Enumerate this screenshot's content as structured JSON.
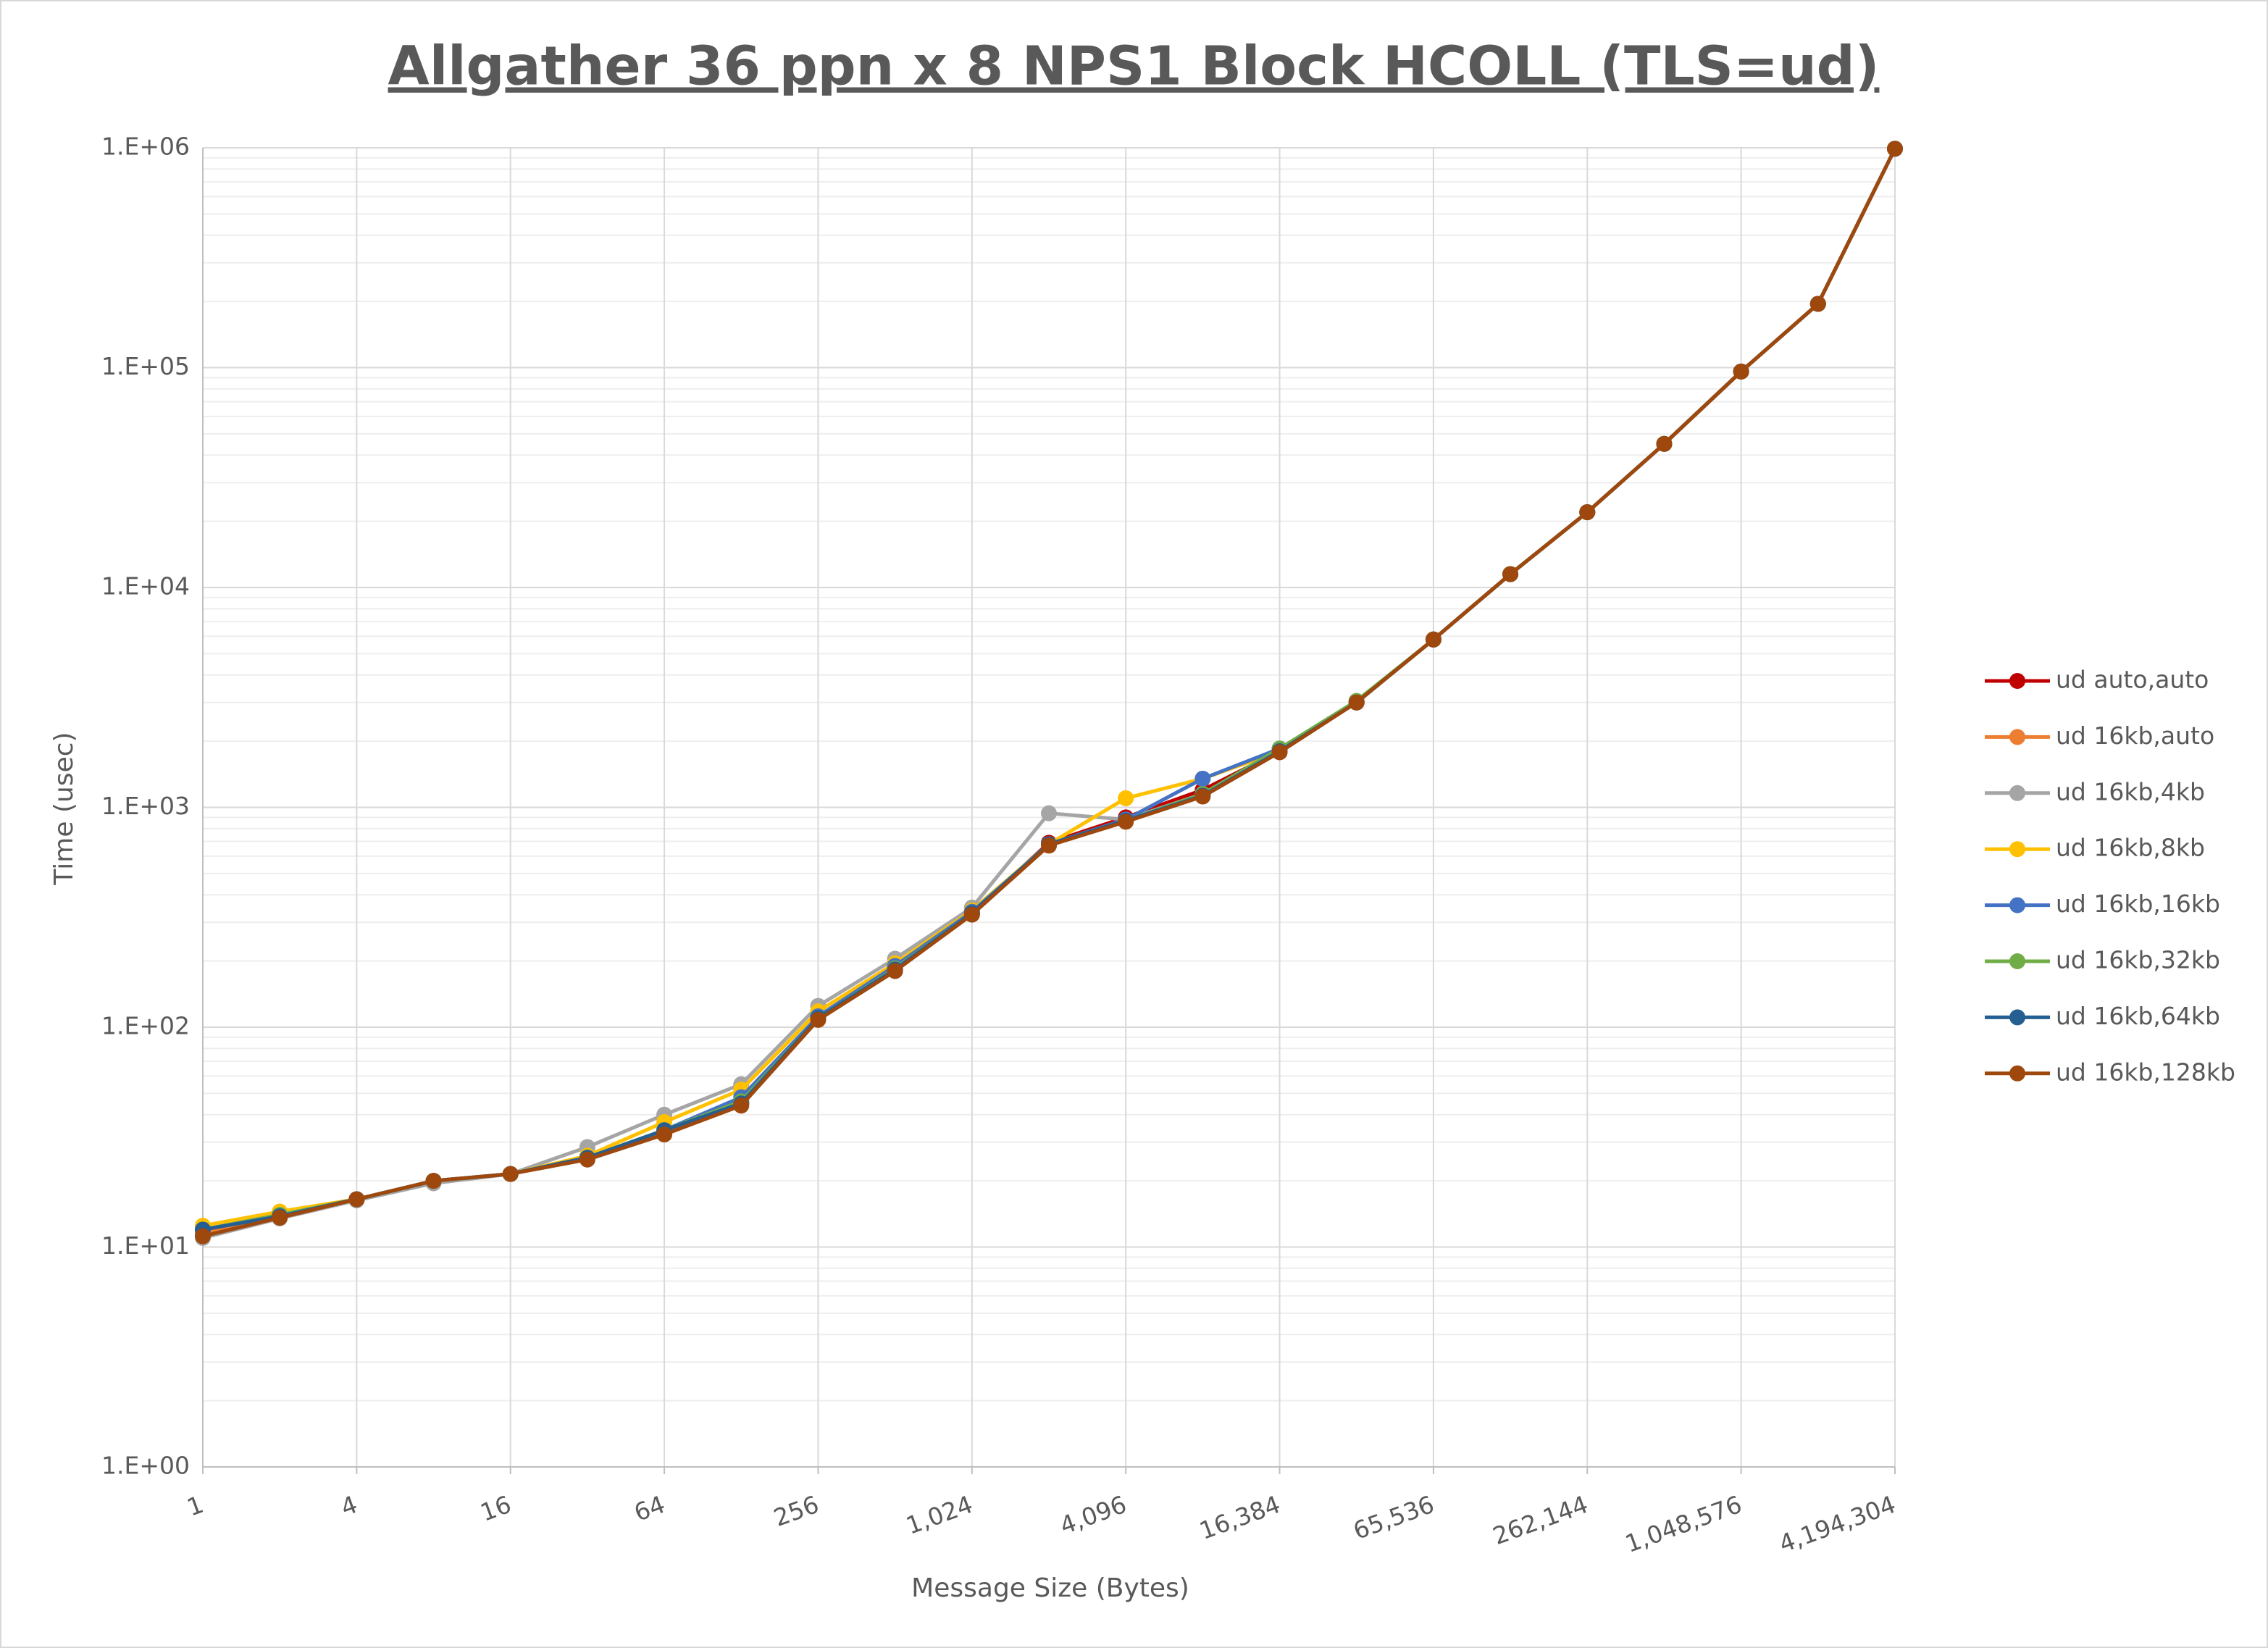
{
  "chart_data": {
    "type": "line",
    "title": "Allgather 36 ppn x 8 NPS1 Block HCOLL (TLS=ud)",
    "x_label": "Message Size (Bytes)",
    "y_label": "Time (usec)",
    "x": [
      1,
      2,
      4,
      8,
      16,
      32,
      64,
      128,
      256,
      512,
      1024,
      2048,
      4096,
      8192,
      16384,
      32768,
      65536,
      131072,
      262144,
      524288,
      1048576,
      2097152,
      4194304
    ],
    "xscale": "log",
    "yscale": "log",
    "grid": true,
    "legend": "right",
    "xlim": [
      1,
      4194304
    ],
    "xticks": [
      1,
      4,
      16,
      64,
      256,
      {
        "value": 1024,
        "label": "1,024"
      },
      {
        "value": 4096,
        "label": "4,096"
      },
      {
        "value": 16384,
        "label": "16,384"
      },
      {
        "value": 65536,
        "label": "65,536"
      },
      {
        "value": 262144,
        "label": "262,144"
      },
      {
        "value": 1048576,
        "label": "1,048,576"
      },
      {
        "value": 4194304,
        "label": "4,194,304"
      }
    ],
    "ylim": [
      1,
      1000000
    ],
    "yticks": [
      {
        "value": 1,
        "label": "1.E+00"
      },
      {
        "value": 10,
        "label": "1.E+01"
      },
      {
        "value": 100,
        "label": "1.E+02"
      },
      {
        "value": 1000,
        "label": "1.E+03"
      },
      {
        "value": 10000,
        "label": "1.E+04"
      },
      {
        "value": 100000,
        "label": "1.E+05"
      },
      {
        "value": 1000000,
        "label": "1.E+06"
      }
    ],
    "series": [
      {
        "name": "ud auto,auto",
        "color": "#c00000",
        "values": [
          11.5,
          13.8,
          16.5,
          20,
          21.5,
          25.5,
          33,
          45,
          110,
          185,
          330,
          690,
          900,
          1200,
          1800,
          3000,
          5800,
          11500,
          22000,
          45000,
          96000,
          195000,
          990000
        ]
      },
      {
        "name": "ud 16kb,auto",
        "color": "#ed7d31",
        "values": [
          11.5,
          14,
          16.5,
          20,
          21.5,
          25.5,
          33,
          46,
          112,
          188,
          335,
          680,
          880,
          1150,
          1800,
          3000,
          5800,
          11500,
          22000,
          45000,
          96000,
          195000,
          990000
        ]
      },
      {
        "name": "ud 16kb,4kb",
        "color": "#a5a5a5",
        "values": [
          11,
          13.5,
          16.3,
          19.5,
          21.5,
          28.5,
          40,
          55,
          125,
          205,
          350,
          940,
          880,
          1150,
          1800,
          3000,
          5800,
          11500,
          22000,
          45000,
          96000,
          195000,
          990000
        ]
      },
      {
        "name": "ud 16kb,8kb",
        "color": "#ffc000",
        "values": [
          12.5,
          14.5,
          16.5,
          20,
          21.5,
          26,
          37,
          52,
          118,
          195,
          340,
          680,
          1100,
          1350,
          1800,
          3000,
          5800,
          11500,
          22000,
          45000,
          96000,
          195000,
          990000
        ]
      },
      {
        "name": "ud 16kb,16kb",
        "color": "#4472c4",
        "values": [
          12,
          14,
          16.5,
          20,
          21.5,
          25.5,
          34,
          48,
          112,
          190,
          335,
          680,
          880,
          1350,
          1850,
          3000,
          5800,
          11500,
          22000,
          45000,
          96000,
          195000,
          990000
        ]
      },
      {
        "name": "ud 16kb,32kb",
        "color": "#70ad47",
        "values": [
          12,
          14,
          16.5,
          20,
          21.5,
          25.5,
          34,
          46,
          110,
          185,
          330,
          680,
          870,
          1150,
          1850,
          3050,
          5800,
          11500,
          22000,
          45000,
          96000,
          195000,
          990000
        ]
      },
      {
        "name": "ud 16kb,64kb",
        "color": "#255e91",
        "values": [
          12,
          13.8,
          16.5,
          20,
          21.5,
          25.5,
          34,
          45,
          110,
          183,
          330,
          680,
          870,
          1130,
          1800,
          3000,
          5800,
          11500,
          22000,
          45000,
          96000,
          195000,
          990000
        ]
      },
      {
        "name": "ud 16kb,128kb",
        "color": "#9e480e",
        "values": [
          11.2,
          13.6,
          16.5,
          20,
          21.5,
          25,
          32.5,
          44,
          108,
          180,
          325,
          670,
          860,
          1120,
          1780,
          3000,
          5800,
          11500,
          22000,
          45000,
          96000,
          195000,
          990000
        ]
      }
    ]
  }
}
